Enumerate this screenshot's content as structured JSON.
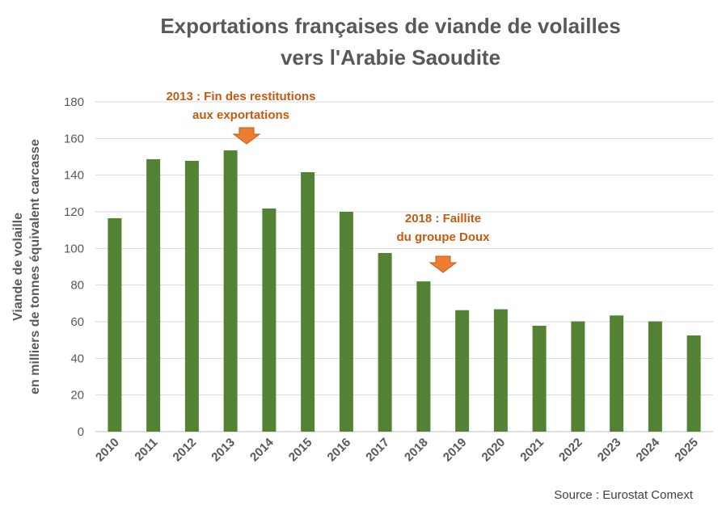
{
  "chart_data": {
    "type": "bar",
    "title": [
      "Exportations françaises de viande de volailles",
      "vers l'Arabie Saoudite"
    ],
    "ylabel": [
      "Viande de volaille",
      "en milliers de tonnes équivalent carcasse"
    ],
    "xlabel": "",
    "categories": [
      "2010",
      "2011",
      "2012",
      "2013",
      "2014",
      "2015",
      "2016",
      "2017",
      "2018",
      "2019",
      "2020",
      "2021",
      "2022",
      "2023",
      "2024",
      "2025"
    ],
    "values": [
      116.5,
      148.7,
      147.8,
      153.5,
      121.8,
      141.6,
      120,
      97.5,
      82,
      66.3,
      66.8,
      57.8,
      60.2,
      63.4,
      60.2,
      52.5
    ],
    "ylim": [
      0,
      180
    ],
    "yticks": [
      0,
      20,
      40,
      60,
      80,
      100,
      120,
      140,
      160,
      180
    ],
    "grid": true,
    "bar_color": "#548235",
    "annotations": [
      {
        "category": "2013",
        "lines": [
          "2013 : Fin des restitutions",
          "aux exportations"
        ]
      },
      {
        "category": "2018",
        "lines": [
          "2018 : Faillite",
          "du groupe Doux"
        ]
      }
    ],
    "annotation_color": "#C55A11",
    "arrow_color": "#ED7D31",
    "source": "Source : Eurostat Comext"
  }
}
